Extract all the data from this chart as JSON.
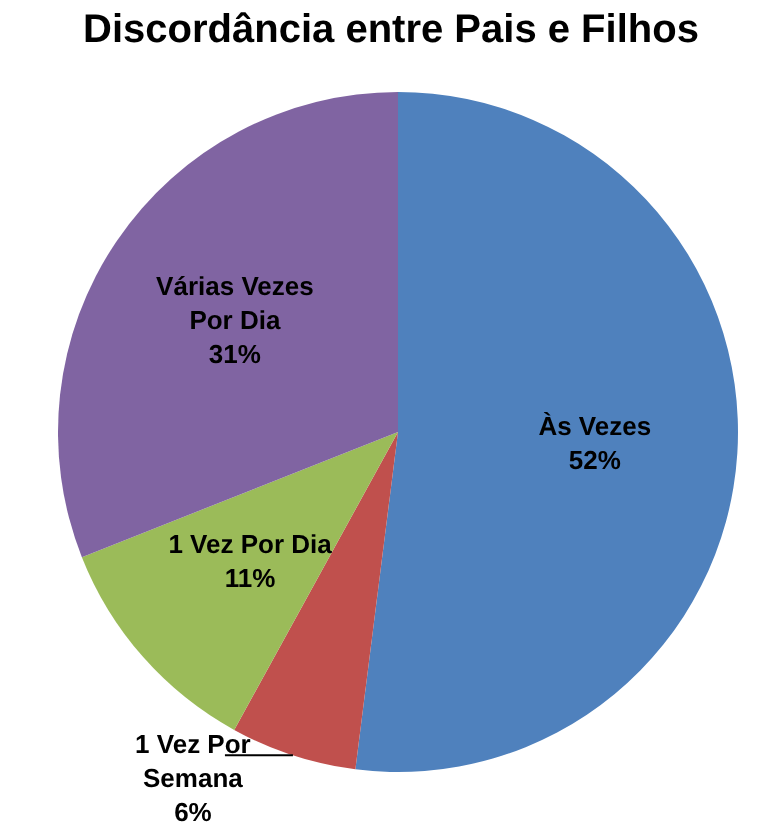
{
  "chart_data": {
    "type": "pie",
    "title": "Discordância entre Pais e Filhos",
    "categories": [
      "Às Vezes",
      "1 Vez Por Semana",
      "1 Vez Por Dia",
      "Várias Vezes Por Dia"
    ],
    "values": [
      52,
      6,
      11,
      31
    ],
    "value_labels": [
      "52%",
      "6%",
      "11%",
      "31%"
    ],
    "colors": [
      "#4f81bd",
      "#c0504d",
      "#9bbb59",
      "#8064a2"
    ],
    "legend": false
  }
}
